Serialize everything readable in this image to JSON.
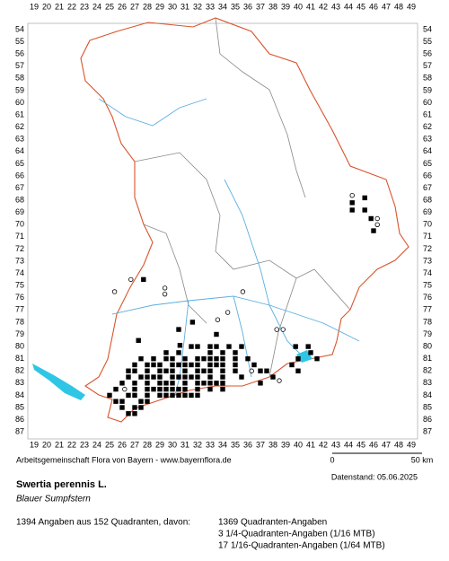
{
  "map": {
    "x_labels": [
      19,
      20,
      21,
      22,
      23,
      24,
      25,
      26,
      27,
      28,
      29,
      30,
      31,
      32,
      33,
      34,
      35,
      36,
      37,
      38,
      39,
      40,
      41,
      42,
      43,
      44,
      45,
      46,
      47,
      48,
      49
    ],
    "y_labels": [
      54,
      55,
      56,
      57,
      58,
      59,
      60,
      61,
      62,
      63,
      64,
      65,
      66,
      67,
      68,
      69,
      70,
      71,
      72,
      73,
      74,
      75,
      76,
      77,
      78,
      79,
      80,
      81,
      82,
      83,
      84,
      85,
      86,
      87
    ],
    "filled_rows": [
      {
        "y": 67.8,
        "x": [
          45.3
        ]
      },
      {
        "y": 68.2,
        "x": [
          44.3
        ]
      },
      {
        "y": 68.8,
        "x": [
          44.3,
          45.3
        ]
      },
      {
        "y": 69.5,
        "x": [
          45.8
        ]
      },
      {
        "y": 70.5,
        "x": [
          46
        ]
      },
      {
        "y": 74.5,
        "x": [
          27.7
        ]
      },
      {
        "y": 78,
        "x": [
          31.6
        ]
      },
      {
        "y": 78.6,
        "x": [
          30.5
        ]
      },
      {
        "y": 79,
        "x": [
          33.5
        ]
      },
      {
        "y": 79.5,
        "x": [
          27.3
        ]
      },
      {
        "y": 79.9,
        "x": [
          30.6
        ]
      },
      {
        "y": 80,
        "x": [
          31.5,
          32,
          33,
          33.5,
          34.5,
          35.5,
          39.8,
          40.8
        ]
      },
      {
        "y": 80.5,
        "x": [
          29.5,
          30.5,
          33,
          34,
          35,
          41
        ]
      },
      {
        "y": 81,
        "x": [
          27.5,
          28.5,
          29.5,
          30,
          31,
          32,
          32.5,
          33,
          33.5,
          34,
          35,
          36,
          40,
          41.5
        ]
      },
      {
        "y": 81.5,
        "x": [
          27,
          28,
          28.5,
          29,
          30,
          30.5,
          31,
          31.5,
          32,
          33,
          33.5,
          34,
          35,
          36.5,
          39.5
        ]
      },
      {
        "y": 82,
        "x": [
          26.5,
          27,
          28,
          29,
          29.5,
          30,
          31,
          32,
          32.5,
          33,
          34,
          35,
          37,
          37.5,
          40
        ]
      },
      {
        "y": 82.5,
        "x": [
          26.5,
          27.5,
          28,
          28.5,
          29,
          30,
          30.5,
          31,
          31.5,
          32,
          33,
          34,
          35.5,
          38
        ]
      },
      {
        "y": 83,
        "x": [
          26,
          27,
          28,
          29,
          29.5,
          30,
          31,
          32,
          32.5,
          33,
          33.5,
          34,
          37
        ]
      },
      {
        "y": 83.5,
        "x": [
          25.5,
          27,
          28,
          28.5,
          29,
          29.5,
          30,
          30.5,
          31,
          32,
          33,
          34
        ]
      },
      {
        "y": 84,
        "x": [
          25,
          26.5,
          27,
          28,
          29,
          29.5,
          30,
          30.5,
          31,
          31.5,
          32
        ]
      },
      {
        "y": 84.5,
        "x": [
          25.5,
          26,
          27.5,
          28
        ]
      },
      {
        "y": 85,
        "x": [
          26,
          27,
          27.5
        ]
      },
      {
        "y": 85.5,
        "x": [
          26.5,
          27
        ]
      }
    ],
    "open_points": [
      [
        25.4,
        75.5
      ],
      [
        26.7,
        74.5
      ],
      [
        29.4,
        75.2
      ],
      [
        29.4,
        75.7
      ],
      [
        35.6,
        75.5
      ],
      [
        34.4,
        77.2
      ],
      [
        33.6,
        77.8
      ],
      [
        38.3,
        78.6
      ],
      [
        38.8,
        78.6
      ],
      [
        44.3,
        67.6
      ],
      [
        46.3,
        69.5
      ],
      [
        46.3,
        70
      ],
      [
        26.2,
        83.5
      ],
      [
        36.3,
        82
      ],
      [
        38.5,
        82.8
      ]
    ],
    "credit": "Arbeitsgemeinschaft Flora von Bayern - www.bayernflora.de",
    "scale_start": "0",
    "scale_end": "50 km",
    "date": "Datenstand: 05.06.2025",
    "species": "Swertia perennis L.",
    "common_name": "Blauer Sumpfstern",
    "summary": "1394 Angaben aus 152 Quadranten, davon:",
    "breakdown": [
      "1369 Quadranten-Angaben",
      "3 1/4-Quadranten-Angaben (1/16 MTB)",
      "17 1/16-Quadranten-Angaben (1/64 MTB)"
    ]
  }
}
